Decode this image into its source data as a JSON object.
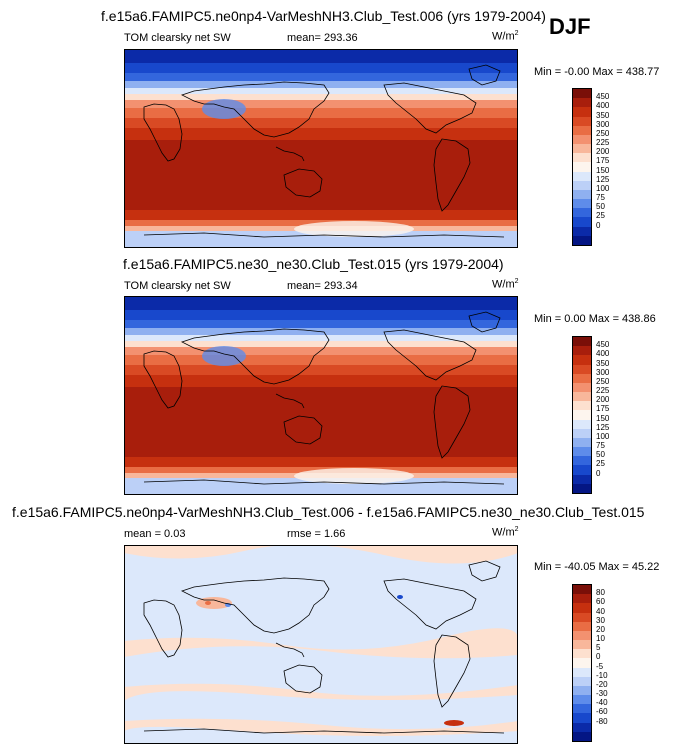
{
  "season": "DJF",
  "panels": [
    {
      "title": "f.e15a6.FAMIPC5.ne0np4-VarMeshNH3.Club_Test.006 (yrs 1979-2004)",
      "left_label": "TOM clearsky net SW",
      "center_label": "mean= 293.36",
      "units_base": "W/m",
      "units_exp": "2",
      "minmax": "Min =  -0.00 Max = 438.77",
      "type": "field"
    },
    {
      "title": "f.e15a6.FAMIPC5.ne30_ne30.Club_Test.015 (yrs 1979-2004)",
      "left_label": "TOM clearsky net SW",
      "center_label": "mean= 293.34",
      "units_base": "W/m",
      "units_exp": "2",
      "minmax": "Min =   0.00 Max = 438.86",
      "type": "field"
    },
    {
      "title": "f.e15a6.FAMIPC5.ne0np4-VarMeshNH3.Club_Test.006 - f.e15a6.FAMIPC5.ne30_ne30.Club_Test.015",
      "left_label": "mean =   0.03",
      "center_label": "rmse =   1.66",
      "units_base": "W/m",
      "units_exp": "2",
      "minmax": "Min = -40.05 Max =  45.22",
      "type": "diff"
    }
  ],
  "colorbars": {
    "field": {
      "labels": [
        "450",
        "400",
        "350",
        "300",
        "250",
        "225",
        "200",
        "175",
        "150",
        "125",
        "100",
        "75",
        "50",
        "25",
        "0"
      ],
      "colors": [
        "#7a0f08",
        "#a81e0c",
        "#c6300f",
        "#d94a24",
        "#e96d44",
        "#f39170",
        "#f8b79b",
        "#fde0cf",
        "#fdf5ee",
        "#dce8fb",
        "#bcd0f7",
        "#8fb0f0",
        "#5e8cea",
        "#3366dd",
        "#1848cc",
        "#0b2aa8",
        "#041684"
      ]
    },
    "diff": {
      "labels": [
        "80",
        "60",
        "40",
        "30",
        "20",
        "10",
        "5",
        "0",
        "-5",
        "-10",
        "-20",
        "-30",
        "-40",
        "-60",
        "-80"
      ],
      "colors": [
        "#7a0f08",
        "#a81e0c",
        "#c6300f",
        "#d94a24",
        "#e96d44",
        "#f39170",
        "#f8b79b",
        "#fde0cf",
        "#fdf5ee",
        "#dce8fb",
        "#bcd0f7",
        "#8fb0f0",
        "#5e8cea",
        "#3366dd",
        "#1848cc",
        "#0b2aa8",
        "#041684"
      ]
    }
  }
}
